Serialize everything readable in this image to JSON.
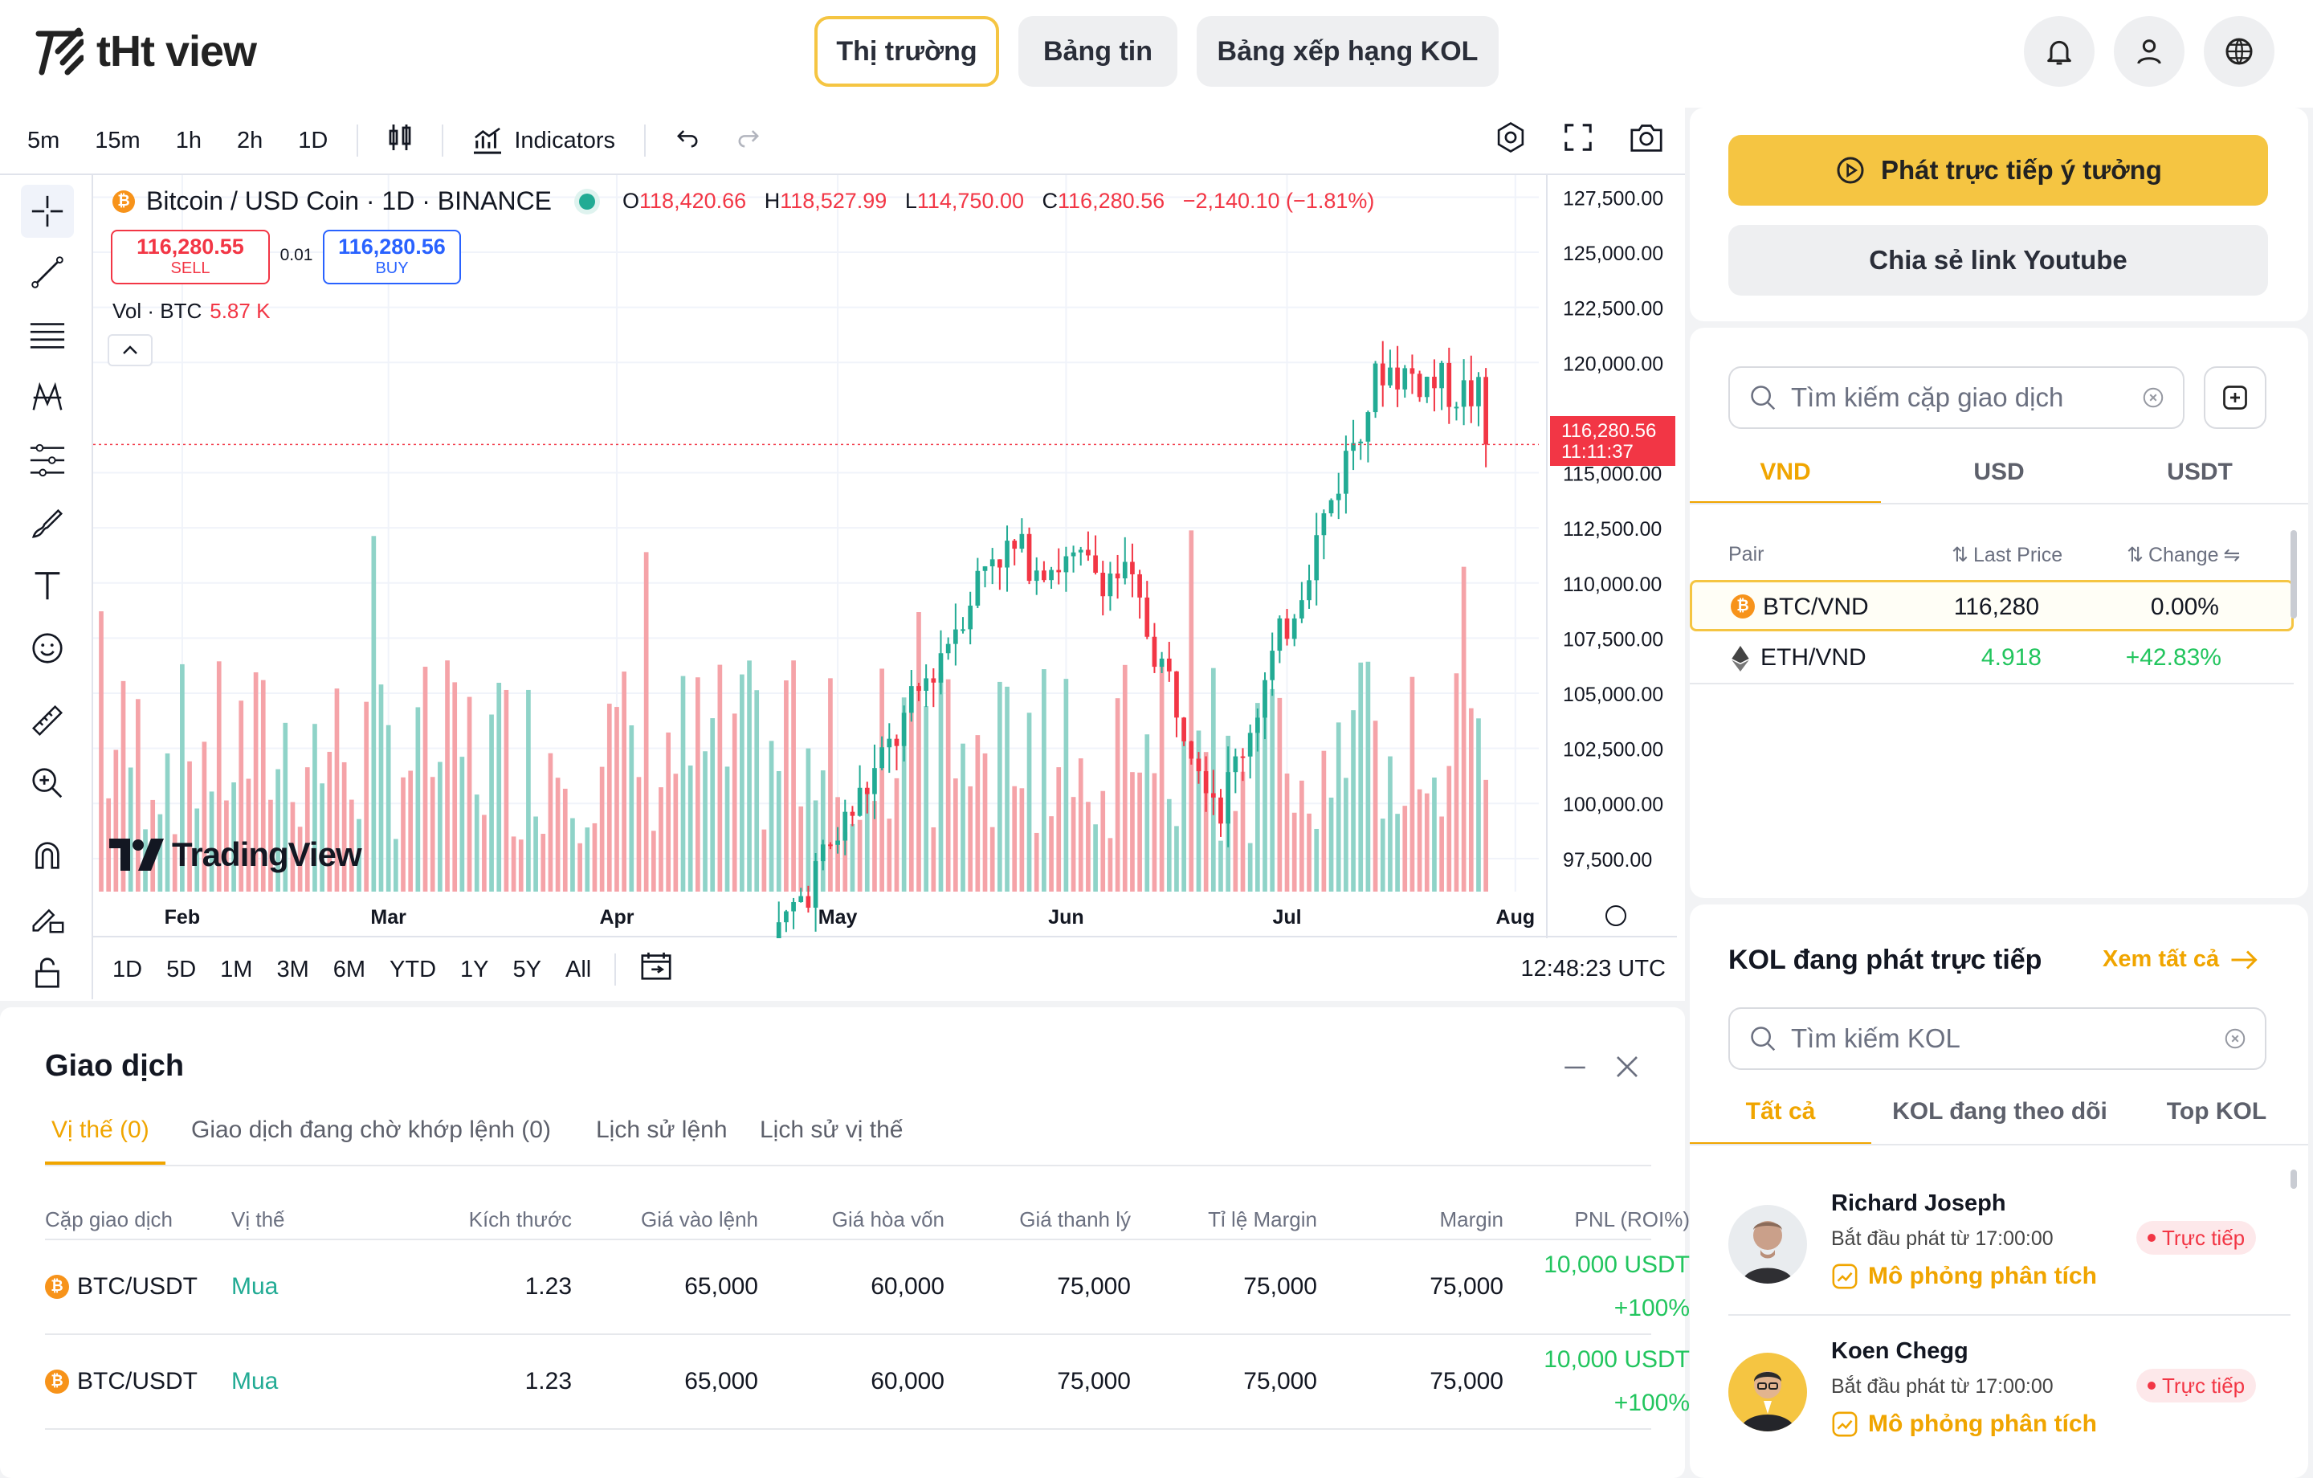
{
  "brand": {
    "name": "tHt view"
  },
  "nav": {
    "tabs": [
      {
        "label": "Thị trường",
        "active": true
      },
      {
        "label": "Bảng tin",
        "active": false
      },
      {
        "label": "Bảng xếp hạng KOL",
        "active": false
      }
    ],
    "icons": [
      "bell-icon",
      "user-icon",
      "globe-icon"
    ]
  },
  "chart": {
    "timeframes": [
      "5m",
      "15m",
      "1h",
      "2h",
      "1D"
    ],
    "indicators_label": "Indicators",
    "symbol": "Bitcoin / USD Coin · 1D · BINANCE",
    "ohlc": {
      "o_label": "O",
      "o": "118,420.66",
      "h_label": "H",
      "h": "118,527.99",
      "l_label": "L",
      "l": "114,750.00",
      "c_label": "C",
      "c": "116,280.56",
      "change": "−2,140.10 (−1.81%)"
    },
    "sell": {
      "price": "116,280.55",
      "label": "SELL"
    },
    "buy": {
      "price": "116,280.56",
      "label": "BUY"
    },
    "spread": "0.01",
    "volume": {
      "label": "Vol · BTC",
      "value": "5.87 K"
    },
    "watermark": "TradingView",
    "last_price": "116,280.56",
    "countdown": "11:11:37",
    "ranges": [
      "1D",
      "5D",
      "1M",
      "3M",
      "6M",
      "YTD",
      "1Y",
      "5Y",
      "All"
    ],
    "utc_time": "12:48:23 UTC"
  },
  "chart_data": {
    "type": "candlestick",
    "title": "Bitcoin / USD Coin · 1D · BINANCE",
    "x_ticks": [
      "Feb",
      "Mar",
      "Apr",
      "May",
      "Jun",
      "Jul",
      "Aug"
    ],
    "y_ticks": [
      "127,500.00",
      "125,000.00",
      "122,500.00",
      "120,000.00",
      "115,000.00",
      "112,500.00",
      "110,000.00",
      "107,500.00",
      "105,000.00",
      "102,500.00",
      "100,000.00",
      "97,500.00"
    ],
    "ylim": [
      96000,
      128500
    ],
    "grid": true,
    "colors": {
      "up": "#22ab94",
      "down": "#f23645",
      "vol_up": "#8fd3c8",
      "vol_down": "#f5a3a8"
    },
    "key_points": [
      {
        "date": "2025-04-22",
        "close": 93500
      },
      {
        "date": "2025-05-09",
        "close": 103000
      },
      {
        "date": "2025-05-22",
        "close": 111500
      },
      {
        "date": "2025-06-09",
        "close": 110300
      },
      {
        "date": "2025-06-22",
        "close": 99900
      },
      {
        "date": "2025-07-11",
        "close": 117500
      },
      {
        "date": "2025-07-14",
        "high": 123200,
        "close": 119800
      },
      {
        "date": "2025-07-27",
        "close": 118400
      },
      {
        "date": "2025-07-28",
        "open": 118420.66,
        "high": 118527.99,
        "low": 114750.0,
        "close": 116280.56
      }
    ]
  },
  "side": {
    "live_button": "Phát trực tiếp ý tưởng",
    "youtube_button": "Chia sẻ link Youtube",
    "pair_search_placeholder": "Tìm kiếm cặp giao dịch",
    "currency_tabs": [
      "VND",
      "USD",
      "USDT"
    ],
    "pair_headers": {
      "pair": "Pair",
      "last_price": "Last Price",
      "change": "Change"
    },
    "pairs": [
      {
        "pair": "BTC/VND",
        "price": "116,280",
        "change": "0.00%"
      },
      {
        "pair": "ETH/VND",
        "price": "4.918",
        "change": "+42.83%"
      }
    ],
    "kol_title": "KOL đang phát trực tiếp",
    "kol_see_all": "Xem tất cả",
    "kol_search_placeholder": "Tìm kiếm KOL",
    "kol_tabs": [
      "Tất cả",
      "KOL đang theo dõi",
      "Top KOL"
    ],
    "kols": [
      {
        "name": "Richard Joseph",
        "time": "Bắt đầu phát từ 17:00:00",
        "badge": "Trực tiếp",
        "action": "Mô phỏng phân tích"
      },
      {
        "name": "Koen Chegg",
        "time": "Bắt đầu phát từ 17:00:00",
        "badge": "Trực tiếp",
        "action": "Mô phỏng phân tích"
      }
    ]
  },
  "orders": {
    "title": "Giao dịch",
    "tabs": [
      "Vị thế (0)",
      "Giao dịch đang chờ khớp lệnh (0)",
      "Lịch sử lệnh",
      "Lịch sử vị thế"
    ],
    "columns": [
      "Cặp giao dịch",
      "Vị thế",
      "Kích thước",
      "Giá vào lệnh",
      "Giá hòa vốn",
      "Giá thanh lý",
      "Tỉ lệ Margin",
      "Margin",
      "PNL (ROI%)"
    ],
    "rows": [
      {
        "pair": "BTC/USDT",
        "side": "Mua",
        "size": "1.23",
        "entry": "65,000",
        "breakeven": "60,000",
        "liq": "75,000",
        "margin_ratio": "75,000",
        "margin": "75,000",
        "pnl": "10,000 USDT",
        "roi": "+100%"
      },
      {
        "pair": "BTC/USDT",
        "side": "Mua",
        "size": "1.23",
        "entry": "65,000",
        "breakeven": "60,000",
        "liq": "75,000",
        "margin_ratio": "75,000",
        "margin": "75,000",
        "pnl": "10,000 USDT",
        "roi": "+100%"
      }
    ]
  }
}
